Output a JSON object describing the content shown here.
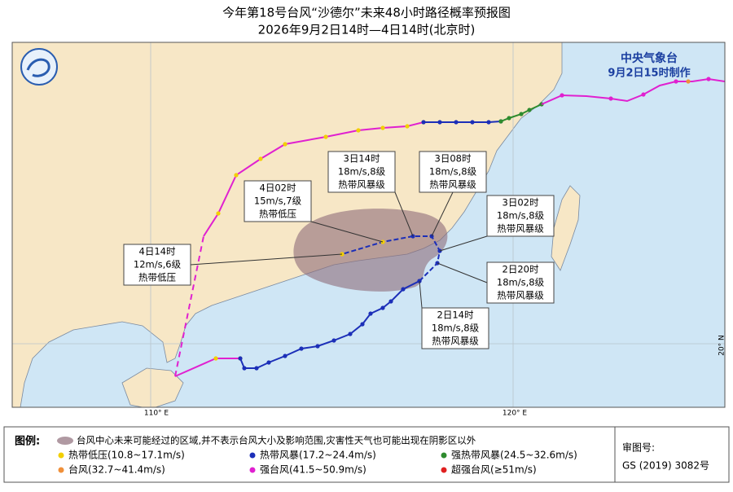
{
  "header": {
    "title": "今年第18号台风“沙德尔”未来48小时路径概率预报图",
    "subtitle": "2026年9月2日14时—4日14时(北京时)"
  },
  "agency": {
    "name": "中央气象台",
    "made": "9月2日15时制作"
  },
  "forecast_points": [
    {
      "time": "4日14时",
      "wind": "12m/s,6级",
      "level": "热带低压"
    },
    {
      "time": "4日02时",
      "wind": "15m/s,7级",
      "level": "热带低压"
    },
    {
      "time": "3日14时",
      "wind": "18m/s,8级",
      "level": "热带风暴级"
    },
    {
      "time": "3日08时",
      "wind": "18m/s,8级",
      "level": "热带风暴级"
    },
    {
      "time": "3日02时",
      "wind": "18m/s,8级",
      "level": "热带风暴级"
    },
    {
      "time": "2日20时",
      "wind": "18m/s,8级",
      "level": "热带风暴级"
    },
    {
      "time": "2日14时",
      "wind": "18m/s,8级",
      "level": "热带风暴级"
    }
  ],
  "axis_labels": {
    "lon110": "110° E",
    "lon120": "120° E",
    "lat20": "20° N"
  },
  "legend": {
    "title": "图例:",
    "area": "台风中心未来可能经过的区域,并不表示台风大小及影响范围,灾害性天气也可能出现在阴影区以外",
    "items": [
      {
        "label": "热带低压(10.8~17.1m/s)",
        "color": "#f2cf00"
      },
      {
        "label": "热带风暴(17.2~24.4m/s)",
        "color": "#1c2fb8"
      },
      {
        "label": "强热带风暴(24.5~32.6m/s)",
        "color": "#2e8b2e"
      },
      {
        "label": "台风(32.7~41.4m/s)",
        "color": "#f0903a"
      },
      {
        "label": "强台风(41.5~50.9m/s)",
        "color": "#e020d0"
      },
      {
        "label": "超强台风(≥51m/s)",
        "color": "#e02020"
      }
    ]
  },
  "approval": {
    "label": "审图号:",
    "number": "GS (2019) 3082号"
  }
}
